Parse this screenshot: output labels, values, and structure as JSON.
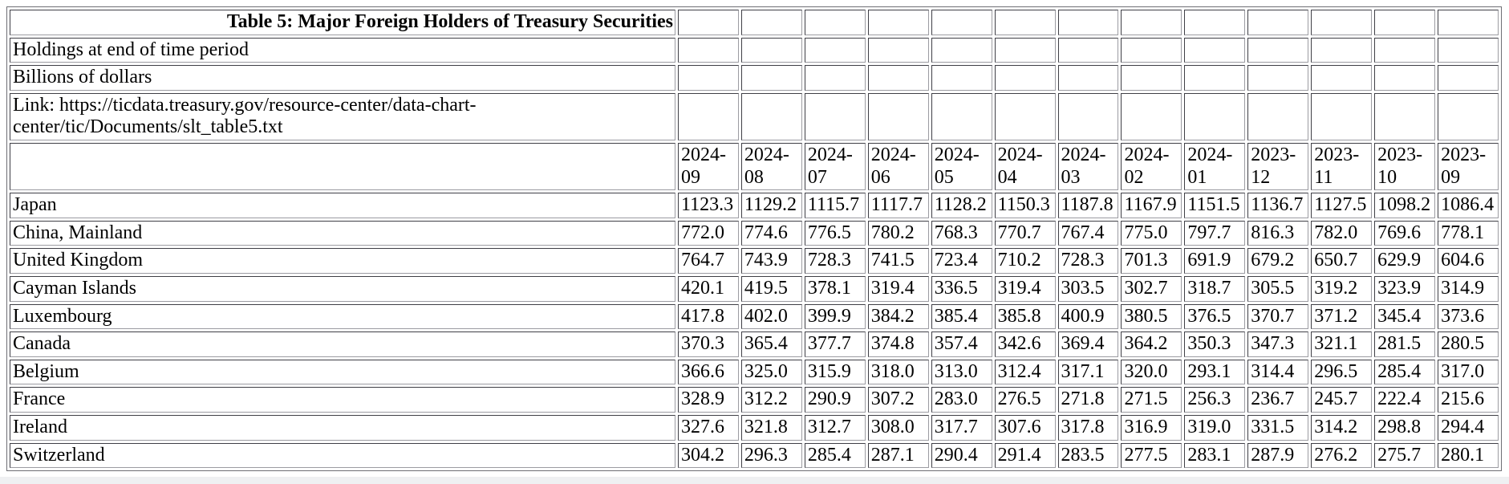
{
  "page": {
    "background_color": "#ffffff",
    "text_color": "#000000",
    "border_light_color": "#9c9ca2",
    "border_dark_color": "#3f3f46"
  },
  "chart_data": {
    "type": "table",
    "title": "Table 5: Major Foreign Holders of Treasury Securities",
    "subtitle": "Holdings at end of time period",
    "units": "Billions of dollars",
    "link_line": "Link: https://ticdata.treasury.gov/resource-center/data-chart-center/tic/Documents/slt_table5.txt",
    "categories": [
      "2024-09",
      "2024-08",
      "2024-07",
      "2024-06",
      "2024-05",
      "2024-04",
      "2024-03",
      "2024-02",
      "2024-01",
      "2023-12",
      "2023-11",
      "2023-10",
      "2023-09"
    ],
    "series": [
      {
        "name": "Japan",
        "values": [
          "1123.3",
          "1129.2",
          "1115.7",
          "1117.7",
          "1128.2",
          "1150.3",
          "1187.8",
          "1167.9",
          "1151.5",
          "1136.7",
          "1127.5",
          "1098.2",
          "1086.4"
        ]
      },
      {
        "name": "China, Mainland",
        "values": [
          "772.0",
          "774.6",
          "776.5",
          "780.2",
          "768.3",
          "770.7",
          "767.4",
          "775.0",
          "797.7",
          "816.3",
          "782.0",
          "769.6",
          "778.1"
        ]
      },
      {
        "name": "United Kingdom",
        "values": [
          "764.7",
          "743.9",
          "728.3",
          "741.5",
          "723.4",
          "710.2",
          "728.3",
          "701.3",
          "691.9",
          "679.2",
          "650.7",
          "629.9",
          "604.6"
        ]
      },
      {
        "name": "Cayman Islands",
        "values": [
          "420.1",
          "419.5",
          "378.1",
          "319.4",
          "336.5",
          "319.4",
          "303.5",
          "302.7",
          "318.7",
          "305.5",
          "319.2",
          "323.9",
          "314.9"
        ]
      },
      {
        "name": "Luxembourg",
        "values": [
          "417.8",
          "402.0",
          "399.9",
          "384.2",
          "385.4",
          "385.8",
          "400.9",
          "380.5",
          "376.5",
          "370.7",
          "371.2",
          "345.4",
          "373.6"
        ]
      },
      {
        "name": "Canada",
        "values": [
          "370.3",
          "365.4",
          "377.7",
          "374.8",
          "357.4",
          "342.6",
          "369.4",
          "364.2",
          "350.3",
          "347.3",
          "321.1",
          "281.5",
          "280.5"
        ]
      },
      {
        "name": "Belgium",
        "values": [
          "366.6",
          "325.0",
          "315.9",
          "318.0",
          "313.0",
          "312.4",
          "317.1",
          "320.0",
          "293.1",
          "314.4",
          "296.5",
          "285.4",
          "317.0"
        ]
      },
      {
        "name": "France",
        "values": [
          "328.9",
          "312.2",
          "290.9",
          "307.2",
          "283.0",
          "276.5",
          "271.8",
          "271.5",
          "256.3",
          "236.7",
          "245.7",
          "222.4",
          "215.6"
        ]
      },
      {
        "name": "Ireland",
        "values": [
          "327.6",
          "321.8",
          "312.7",
          "308.0",
          "317.7",
          "307.6",
          "317.8",
          "316.9",
          "319.0",
          "331.5",
          "314.2",
          "298.8",
          "294.4"
        ]
      },
      {
        "name": "Switzerland",
        "values": [
          "304.2",
          "296.3",
          "285.4",
          "287.1",
          "290.4",
          "291.4",
          "283.5",
          "277.5",
          "283.1",
          "287.9",
          "276.2",
          "275.7",
          "280.1"
        ]
      }
    ],
    "layout": {
      "header_rows": [
        "title",
        "subtitle",
        "units",
        "link_line"
      ],
      "grid": "all-cell-borders",
      "value_columns": 13,
      "data_rows": 10
    }
  }
}
